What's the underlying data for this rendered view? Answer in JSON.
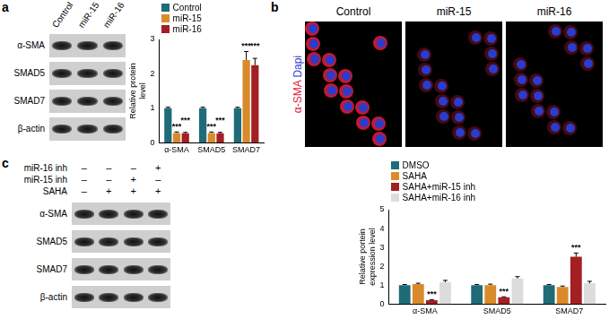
{
  "panel_labels": [
    "a",
    "b",
    "c"
  ],
  "chart_data": [
    {
      "type": "bar",
      "categories": [
        "α-SMA",
        "SMAD5",
        "SMAD7"
      ],
      "series": [
        {
          "name": "Control",
          "color": "#1f6b77",
          "values": [
            1,
            1,
            1
          ],
          "errors": [
            0.03,
            0.03,
            0.03
          ]
        },
        {
          "name": "miR-15",
          "color": "#d98b2b",
          "values": [
            0.28,
            0.28,
            2.4
          ],
          "errors": [
            0.03,
            0.03,
            0.25
          ]
        },
        {
          "name": "miR-16",
          "color": "#a31f24",
          "values": [
            0.27,
            0.27,
            2.25
          ],
          "errors": [
            0.03,
            0.03,
            0.2
          ]
        }
      ],
      "y_label": [
        "Relative protein",
        "level"
      ],
      "ylim": [
        0,
        3
      ],
      "yticks": [
        0,
        1,
        2,
        3
      ],
      "grid": false,
      "legend": "top-left",
      "annotations": [
        {
          "text": "***",
          "category": "α-SMA",
          "series": "miR-15"
        },
        {
          "text": "***",
          "category": "α-SMA",
          "series": "miR-16"
        },
        {
          "text": "***",
          "category": "SMAD5",
          "series": "miR-15"
        },
        {
          "text": "***",
          "category": "SMAD5",
          "series": "miR-16"
        },
        {
          "text": "***",
          "category": "SMAD7",
          "series": "miR-15"
        },
        {
          "text": "***",
          "category": "SMAD7",
          "series": "miR-16"
        }
      ]
    },
    {
      "type": "bar",
      "categories": [
        "α-SMA",
        "SMAD5",
        "SMAD7"
      ],
      "series": [
        {
          "name": "DMSO",
          "color": "#1f6b77",
          "values": [
            1,
            1,
            1
          ],
          "errors": [
            0.03,
            0.03,
            0.03
          ]
        },
        {
          "name": "SAHA",
          "color": "#d98b2b",
          "values": [
            1.05,
            1.0,
            0.9
          ],
          "errors": [
            0.05,
            0.05,
            0.05
          ]
        },
        {
          "name": "SAHA+miR-15 inh",
          "color": "#a31f24",
          "values": [
            0.2,
            0.35,
            2.5
          ],
          "errors": [
            0.03,
            0.03,
            0.2
          ]
        },
        {
          "name": "SAHA+miR-16 inh",
          "color": "#dcdcdc",
          "values": [
            1.15,
            1.35,
            1.1
          ],
          "errors": [
            0.1,
            0.1,
            0.1
          ]
        }
      ],
      "y_label": [
        "Relative portein",
        "expression level"
      ],
      "ylim": [
        0,
        5
      ],
      "yticks": [
        0,
        1,
        2,
        3,
        4,
        5
      ],
      "grid": false,
      "legend": "top-left",
      "annotations": [
        {
          "text": "***",
          "category": "α-SMA",
          "series": "SAHA+miR-15 inh"
        },
        {
          "text": "***",
          "category": "SMAD5",
          "series": "SAHA+miR-15 inh"
        },
        {
          "text": "***",
          "category": "SMAD7",
          "series": "SAHA+miR-15 inh"
        }
      ]
    }
  ],
  "blot_a": {
    "columns": [
      "Control",
      "miR-15",
      "miR-16"
    ],
    "rows": [
      "α-SMA",
      "SMAD5",
      "SMAD7",
      "β-actin"
    ]
  },
  "microscopy_b": {
    "columns": [
      "Control",
      "miR-15",
      "miR-16"
    ],
    "stains": [
      {
        "label": "α-SMA",
        "color": "#e0203a"
      },
      {
        "label": "Dapi",
        "color": "#2a3cd0"
      }
    ]
  },
  "blot_c": {
    "treatments": [
      {
        "label": "miR-16 inh",
        "marks": [
          "–",
          "–",
          "–",
          "+"
        ]
      },
      {
        "label": "miR-15 inh",
        "marks": [
          "–",
          "–",
          "+",
          "–"
        ]
      },
      {
        "label": "SAHA",
        "marks": [
          "–",
          "+",
          "+",
          "+"
        ]
      }
    ],
    "rows": [
      "α-SMA",
      "SMAD5",
      "SMAD7",
      "β-actin"
    ]
  }
}
